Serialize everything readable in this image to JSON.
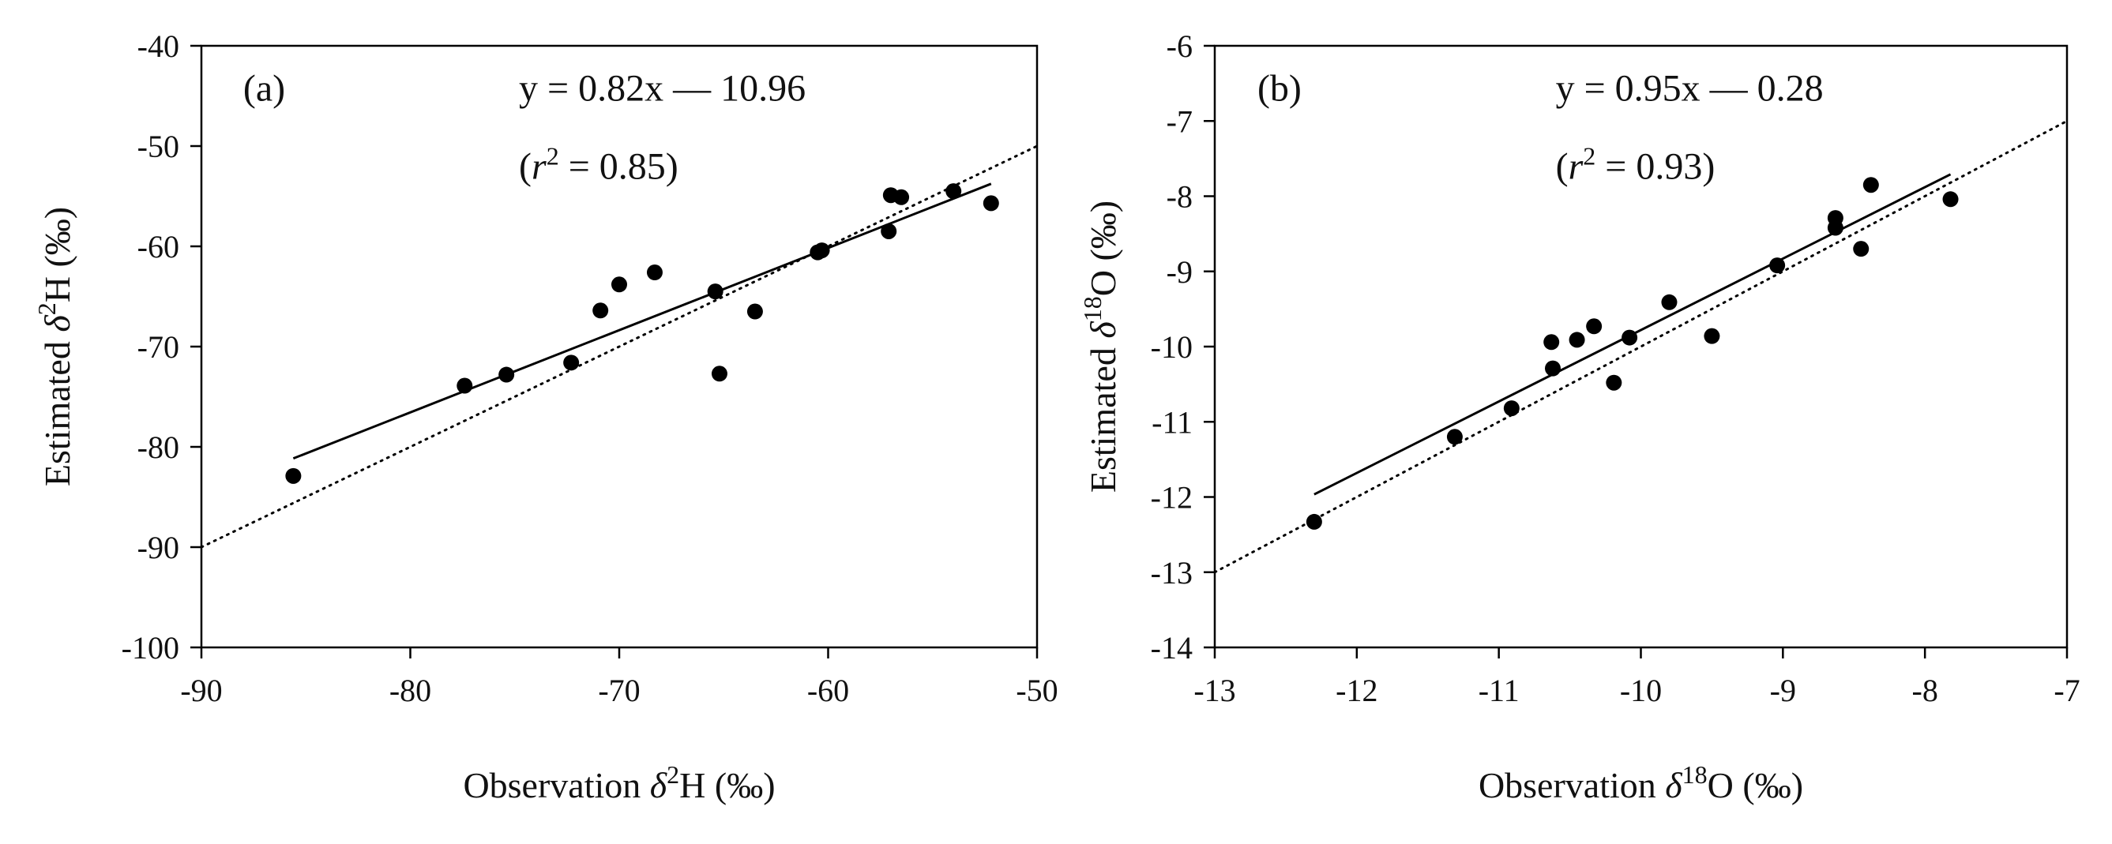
{
  "chart_data": [
    {
      "type": "scatter",
      "panel_label": "(a)",
      "xlabel": {
        "prefix": "Observation ",
        "symbol": "δ",
        "sup": "2",
        "element": "H",
        "unit": " (‰)"
      },
      "ylabel": {
        "prefix": "Estimated ",
        "symbol": "δ",
        "sup": "2",
        "element": "H",
        "unit": " (‰)"
      },
      "xlim": [
        -90,
        -50
      ],
      "ylim": [
        -100,
        -40
      ],
      "xticks": [
        -90,
        -80,
        -70,
        -60,
        -50
      ],
      "yticks": [
        -100,
        -90,
        -80,
        -70,
        -60,
        -50,
        -40
      ],
      "xtick_labels": [
        "-90",
        "-80",
        "-70",
        "-60",
        "-50"
      ],
      "ytick_labels": [
        "-100",
        "-90",
        "-80",
        "-70",
        "-60",
        "-50",
        "-40"
      ],
      "equation": "y = 0.82x — 10.96",
      "r2": {
        "open": "(",
        "var": "r",
        "sup": "2",
        "rest": " = 0.85)"
      },
      "fit": {
        "slope": 0.82,
        "intercept": -10.96,
        "x_range": [
          -85.6,
          -52.2
        ]
      },
      "reference_line": {
        "type": "1:1",
        "style": "dotted"
      },
      "points": [
        {
          "x": -85.6,
          "y": -82.9
        },
        {
          "x": -77.4,
          "y": -73.9
        },
        {
          "x": -75.4,
          "y": -72.8
        },
        {
          "x": -72.3,
          "y": -71.6
        },
        {
          "x": -70.9,
          "y": -66.4
        },
        {
          "x": -70.0,
          "y": -63.8
        },
        {
          "x": -68.3,
          "y": -62.6
        },
        {
          "x": -65.4,
          "y": -64.5
        },
        {
          "x": -65.2,
          "y": -72.7
        },
        {
          "x": -63.5,
          "y": -66.5
        },
        {
          "x": -60.5,
          "y": -60.6
        },
        {
          "x": -60.3,
          "y": -60.4
        },
        {
          "x": -57.1,
          "y": -58.5
        },
        {
          "x": -57.0,
          "y": -54.9
        },
        {
          "x": -56.5,
          "y": -55.1
        },
        {
          "x": -54.0,
          "y": -54.5
        },
        {
          "x": -52.2,
          "y": -55.7
        }
      ]
    },
    {
      "type": "scatter",
      "panel_label": "(b)",
      "xlabel": {
        "prefix": "Observation ",
        "symbol": "δ",
        "sup": "18",
        "element": "O",
        "unit": " (‰)"
      },
      "ylabel": {
        "prefix": "Estimated ",
        "symbol": "δ",
        "sup": "18",
        "element": "O",
        "unit": " (‰)"
      },
      "xlim": [
        -13,
        -7
      ],
      "ylim": [
        -14,
        -6
      ],
      "xticks": [
        -13,
        -12,
        -11,
        -10,
        -9,
        -8,
        -7
      ],
      "yticks": [
        -14,
        -13,
        -12,
        -11,
        -10,
        -9,
        -8,
        -7,
        -6
      ],
      "xtick_labels": [
        "-13",
        "-12",
        "-11",
        "-10",
        "-9",
        "-8",
        "-7"
      ],
      "ytick_labels": [
        "-14",
        "-13",
        "-12",
        "-11",
        "-10",
        "-9",
        "-8",
        "-7",
        "-6"
      ],
      "equation": "y = 0.95x — 0.28",
      "r2": {
        "open": "(",
        "var": "r",
        "sup": "2",
        "rest": " = 0.93)"
      },
      "fit": {
        "slope": 0.95,
        "intercept": -0.28,
        "x_range": [
          -12.3,
          -7.82
        ]
      },
      "reference_line": {
        "type": "1:1",
        "style": "dotted"
      },
      "points": [
        {
          "x": -12.3,
          "y": -12.33
        },
        {
          "x": -11.31,
          "y": -11.2
        },
        {
          "x": -10.91,
          "y": -10.82
        },
        {
          "x": -10.63,
          "y": -9.94
        },
        {
          "x": -10.62,
          "y": -10.29
        },
        {
          "x": -10.45,
          "y": -9.91
        },
        {
          "x": -10.33,
          "y": -9.73
        },
        {
          "x": -10.19,
          "y": -10.48
        },
        {
          "x": -10.08,
          "y": -9.88
        },
        {
          "x": -9.8,
          "y": -9.41
        },
        {
          "x": -9.5,
          "y": -9.86
        },
        {
          "x": -9.04,
          "y": -8.92
        },
        {
          "x": -8.63,
          "y": -8.29
        },
        {
          "x": -8.63,
          "y": -8.42
        },
        {
          "x": -8.45,
          "y": -8.7
        },
        {
          "x": -8.38,
          "y": -7.85
        },
        {
          "x": -7.82,
          "y": -8.04
        }
      ]
    }
  ]
}
